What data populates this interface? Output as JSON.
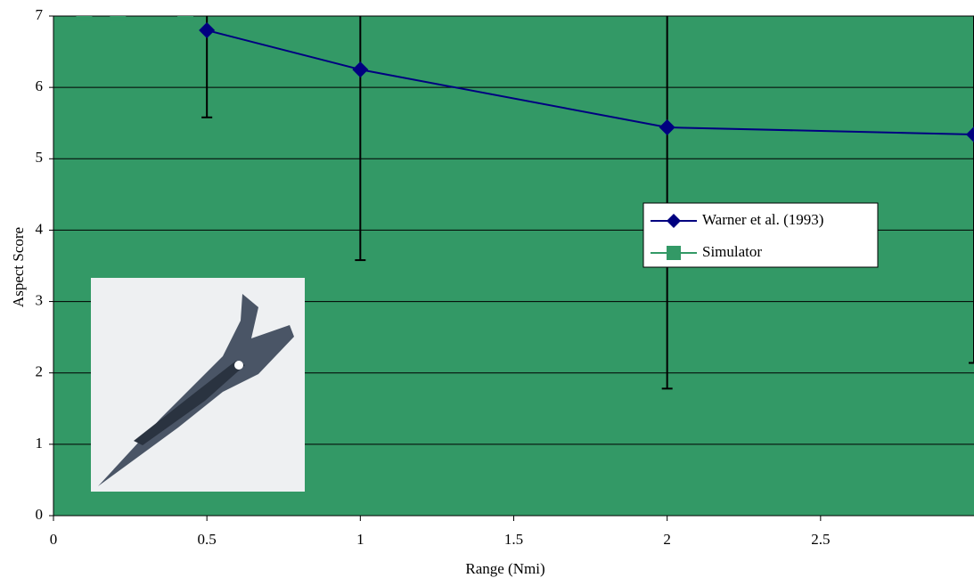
{
  "chart_data": {
    "type": "line",
    "x_label": "Range (Nmi)",
    "y_label": "Aspect Score",
    "xlim": [
      0,
      3
    ],
    "ylim": [
      0,
      7
    ],
    "xticks": [
      0,
      0.5,
      1,
      1.5,
      2,
      2.5
    ],
    "yticks": [
      0,
      1,
      2,
      3,
      4,
      5,
      6,
      7
    ],
    "grid": true,
    "plot_background": "#339966",
    "series": [
      {
        "name": "Warner et al. (1993)",
        "color": "#000080",
        "marker": "diamond",
        "x": [
          0.5,
          1,
          2,
          3
        ],
        "values": [
          6.8,
          6.25,
          5.44,
          5.34
        ],
        "errors": [
          1.22,
          2.67,
          3.66,
          3.2
        ]
      },
      {
        "name": "Simulator",
        "color": "#339966",
        "marker": "square",
        "x": [
          0.1,
          0.21,
          0.43
        ],
        "values": [
          7.05,
          7.05,
          7.05
        ]
      }
    ]
  }
}
